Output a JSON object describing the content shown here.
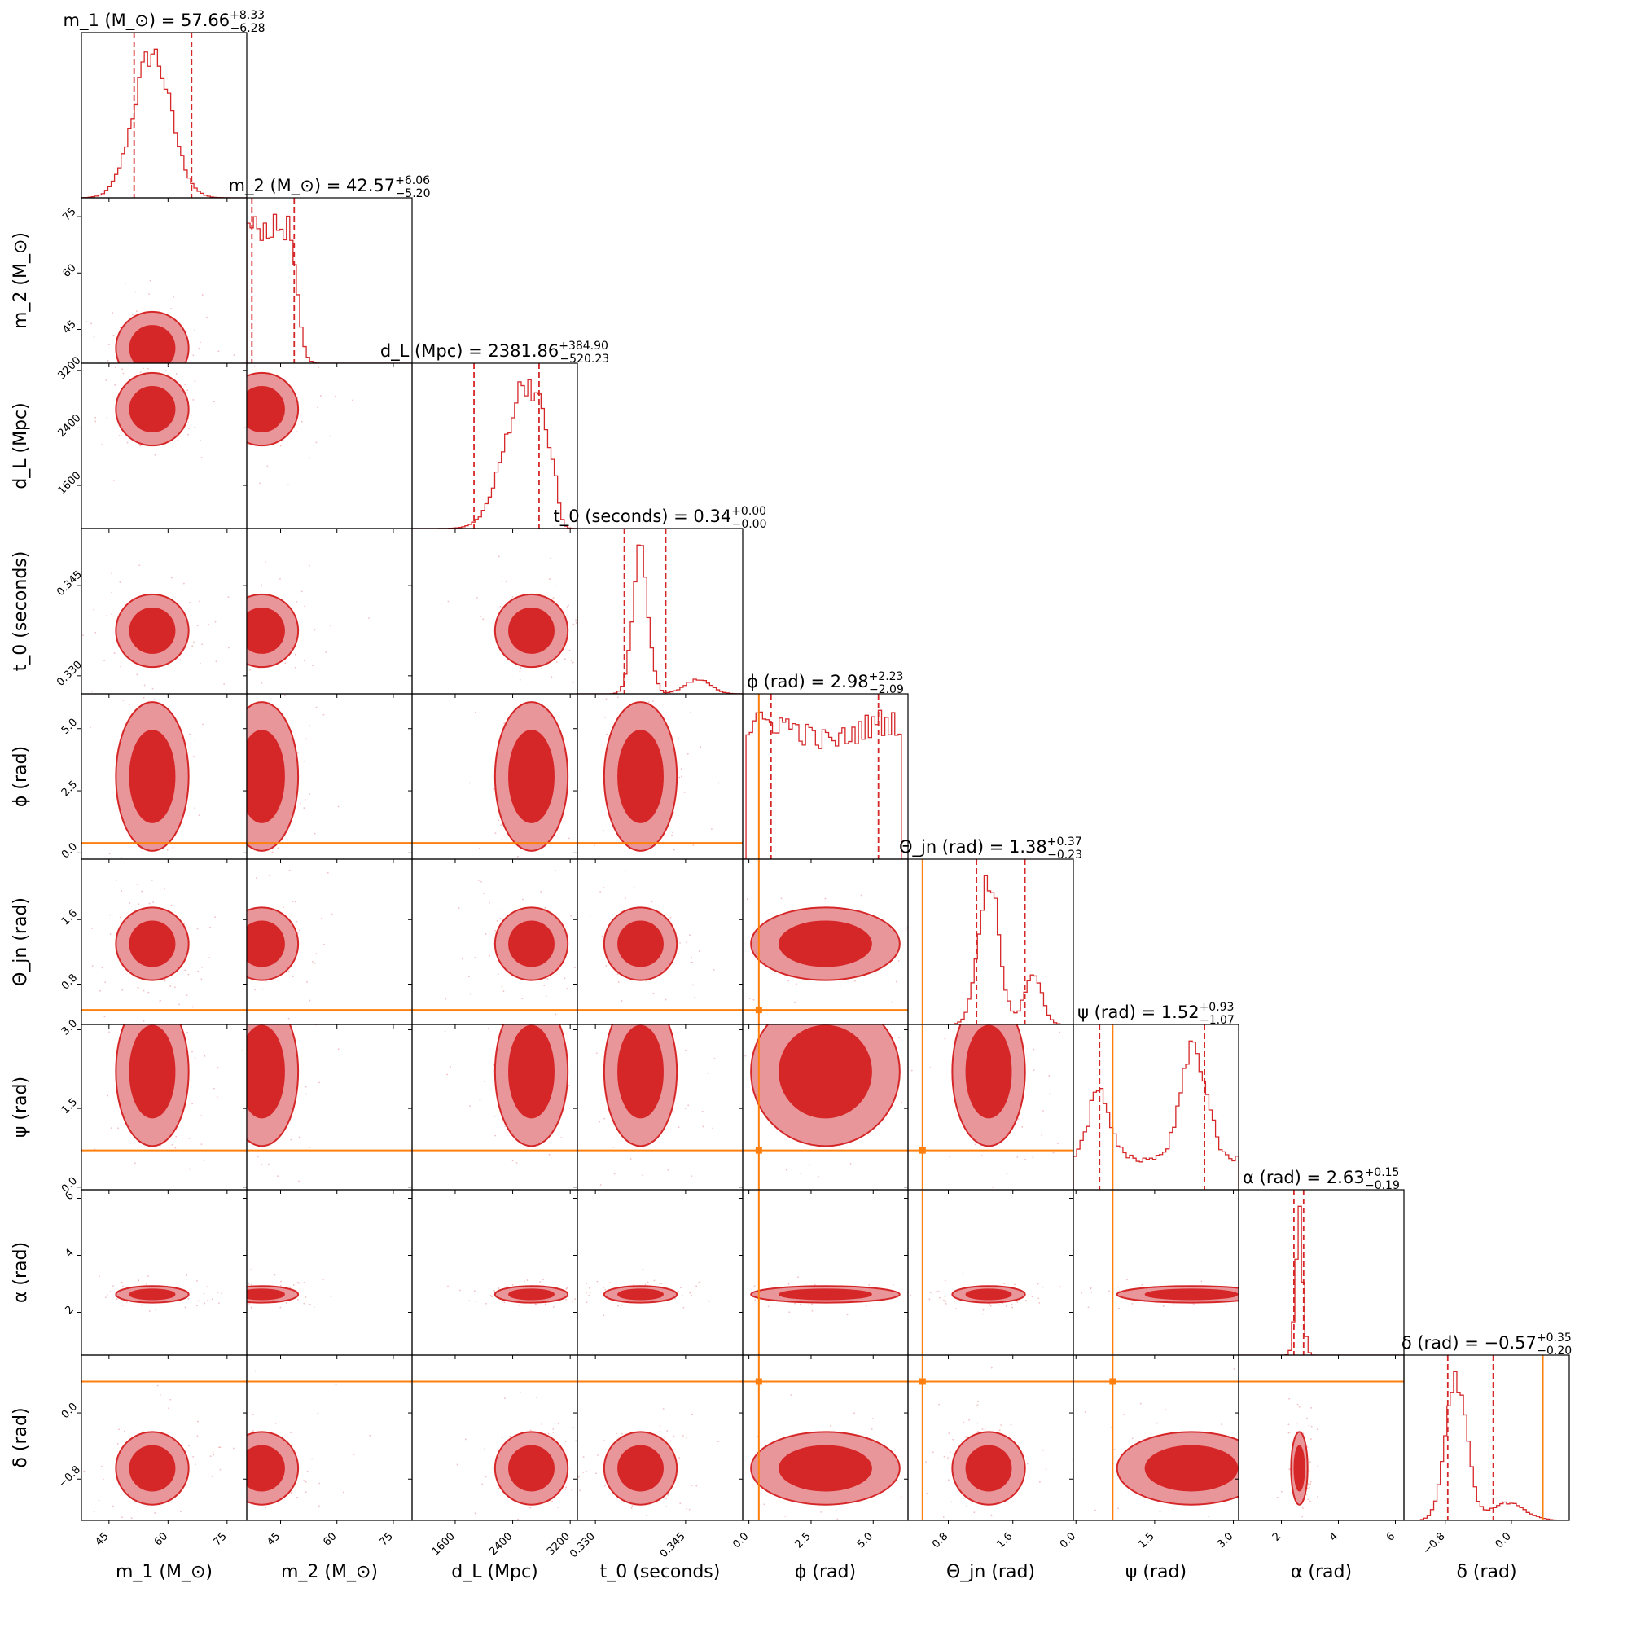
{
  "chart_data": {
    "type": "corner",
    "colors": {
      "posterior": "#d62728",
      "posterior_light": "#e8969a",
      "injection": "#ff7f0e",
      "frame": "#000000"
    },
    "params": [
      {
        "key": "m1",
        "label": "m_1 (M_⊙)",
        "title_name": "m_1 (M_⊙)",
        "median": "57.66",
        "plus": "+8.33",
        "minus": "−6.28",
        "range": [
          38,
          80
        ],
        "ticks": [
          45,
          60,
          75
        ],
        "tick_labels": [
          "45",
          "60",
          "75"
        ],
        "peak": 56,
        "injection": null,
        "q": [
          51.38,
          65.99
        ]
      },
      {
        "key": "m2",
        "label": "m_2 (M_⊙)",
        "title_name": "m_2 (M_⊙)",
        "median": "42.57",
        "plus": "+6.06",
        "minus": "−5.20",
        "range": [
          36,
          80
        ],
        "ticks": [
          45,
          60,
          75
        ],
        "tick_labels": [
          "45",
          "60",
          "75"
        ],
        "peak": 40,
        "injection": null,
        "q": [
          37.37,
          48.63
        ]
      },
      {
        "key": "dL",
        "label": "d_L (Mpc)",
        "title_name": "d_L (Mpc)",
        "median": "2381.86",
        "plus": "+384.90",
        "minus": "−520.23",
        "range": [
          1000,
          3300
        ],
        "ticks": [
          1600,
          2400,
          3200
        ],
        "tick_labels": [
          "1600",
          "2400",
          "3200"
        ],
        "peak": 2660,
        "injection": null,
        "q": [
          1861.63,
          2766.76
        ]
      },
      {
        "key": "t0",
        "label": "t_0 (seconds)",
        "title_name": "t_0 (seconds)",
        "median": "0.34",
        "plus": "+0.00",
        "minus": "−0.00",
        "range": [
          0.327,
          0.3545
        ],
        "ticks": [
          0.33,
          0.345
        ],
        "tick_labels": [
          "0.330",
          "0.345"
        ],
        "peak": 0.3375,
        "injection": null,
        "q": [
          0.3348,
          0.3417
        ]
      },
      {
        "key": "phi",
        "label": "ϕ (rad)",
        "title_name": "ϕ (rad)",
        "median": "2.98",
        "plus": "+2.23",
        "minus": "−2.09",
        "range": [
          -0.25,
          6.4
        ],
        "ticks": [
          0.0,
          2.5,
          5.0
        ],
        "tick_labels": [
          "0.0",
          "2.5",
          "5.0"
        ],
        "peak": null,
        "injection": 0.4,
        "q": [
          0.89,
          5.21
        ]
      },
      {
        "key": "theta",
        "label": "Θ_jn (rad)",
        "title_name": "Θ_jn (rad)",
        "median": "1.38",
        "plus": "+0.37",
        "minus": "−0.23",
        "range": [
          0.3,
          2.35
        ],
        "ticks": [
          0.8,
          1.6
        ],
        "tick_labels": [
          "0.8",
          "1.6"
        ],
        "peak": 1.3,
        "injection": 0.48,
        "q": [
          1.15,
          1.75
        ]
      },
      {
        "key": "psi",
        "label": "ψ (rad)",
        "title_name": "ψ (rad)",
        "median": "1.52",
        "plus": "+0.93",
        "minus": "−1.07",
        "range": [
          -0.05,
          3.1
        ],
        "ticks": [
          0.0,
          1.5,
          3.0
        ],
        "tick_labels": [
          "0.0",
          "1.5",
          "3.0"
        ],
        "peak": 2.2,
        "injection": 0.7,
        "q": [
          0.45,
          2.45
        ]
      },
      {
        "key": "alpha",
        "label": "α (rad)",
        "title_name": "α (rad)",
        "median": "2.63",
        "plus": "+0.15",
        "minus": "−0.19",
        "range": [
          0.5,
          6.3
        ],
        "ticks": [
          2,
          4,
          6
        ],
        "tick_labels": [
          "2",
          "4",
          "6"
        ],
        "peak": 2.63,
        "injection": null,
        "q": [
          2.44,
          2.78
        ]
      },
      {
        "key": "delta",
        "label": "δ (rad)",
        "title_name": "δ (rad)",
        "median": "−0.57",
        "plus": "+0.35",
        "minus": "−0.20",
        "range": [
          -1.3,
          0.7
        ],
        "ticks": [
          -0.8,
          0.0
        ],
        "tick_labels": [
          "−0.8",
          "0.0"
        ],
        "peak": -0.67,
        "injection": 0.38,
        "q": [
          -0.77,
          -0.22
        ]
      }
    ],
    "contour_levels": [
      "outer",
      "inner"
    ],
    "grid": false,
    "legend": "none"
  }
}
